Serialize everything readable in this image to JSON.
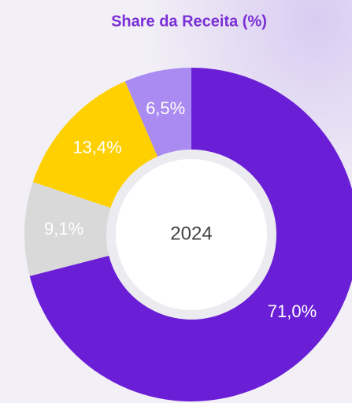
{
  "chart_data": {
    "type": "donut",
    "title": "Share da Receita (%)",
    "center_label": "2024",
    "categories": [
      null,
      null,
      null,
      null
    ],
    "values": [
      71.0,
      9.1,
      13.4,
      6.5
    ],
    "value_labels": [
      "71,0%",
      "9,1%",
      "13,4%",
      "6,5%"
    ],
    "colors": [
      "#6a1fd6",
      "#d9d9d9",
      "#ffd000",
      "#a98bf1"
    ]
  }
}
